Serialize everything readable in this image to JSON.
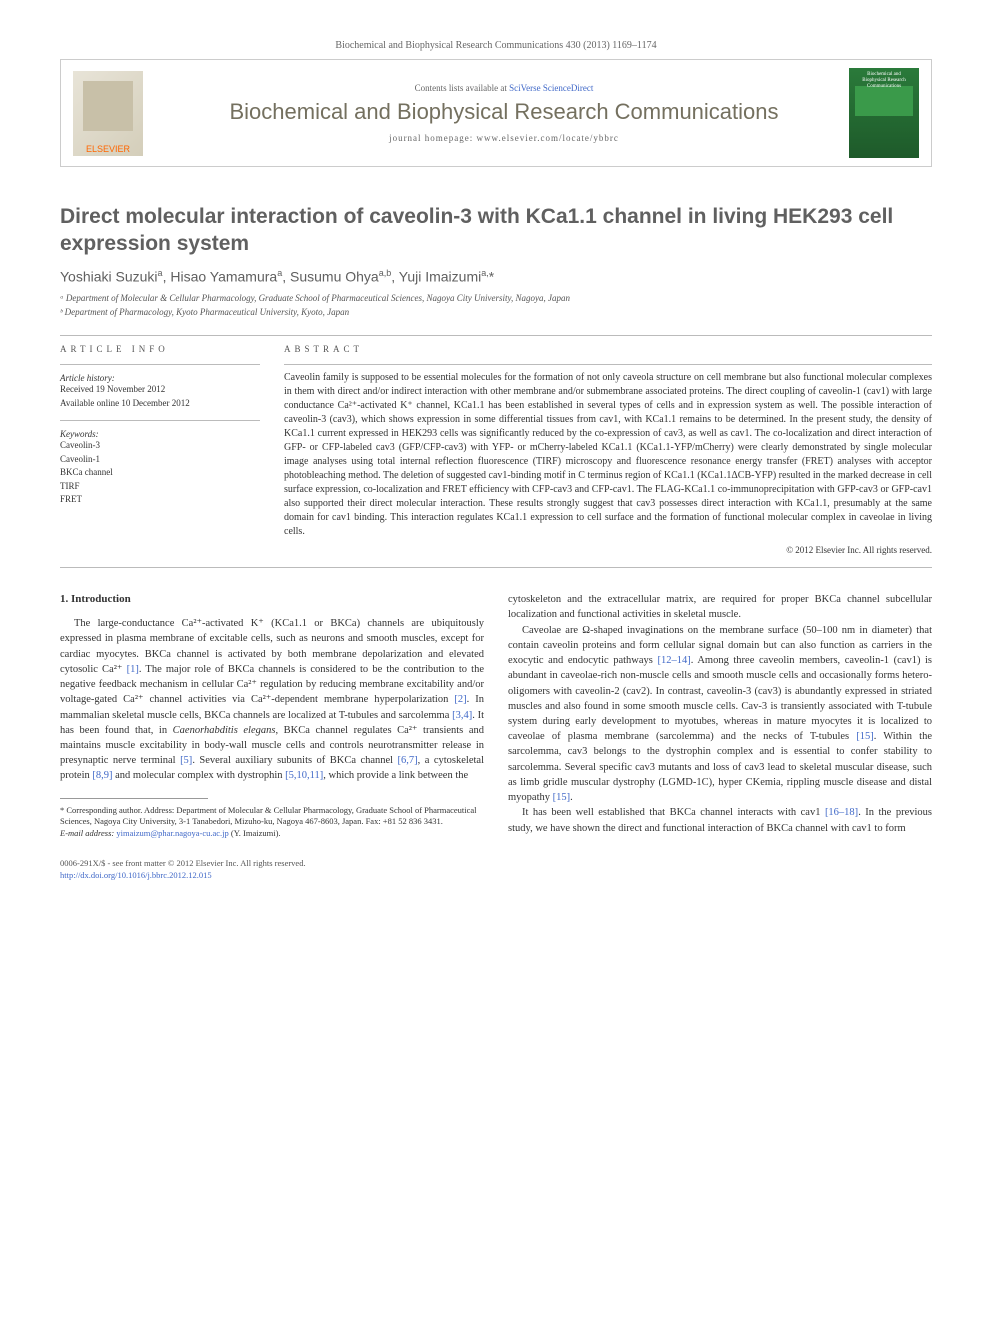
{
  "header": {
    "citation": "Biochemical and Biophysical Research Communications 430 (2013) 1169–1174",
    "contents_prefix": "Contents lists available at ",
    "contents_link": "SciVerse ScienceDirect",
    "journal_name": "Biochemical and Biophysical Research Communications",
    "homepage_prefix": "journal homepage: ",
    "homepage_url": "www.elsevier.com/locate/ybbrc",
    "publisher_label": "ELSEVIER"
  },
  "title": "Direct molecular interaction of caveolin-3 with KCa1.1 channel in living HEK293 cell expression system",
  "authors_html": "Yoshiaki Suzuki<sup>a</sup>, Hisao Yamamura<sup>a</sup>, Susumu Ohya<sup>a,b</sup>, Yuji Imaizumi<sup>a,</sup><span class='star'>*</span>",
  "affiliations": [
    "ᵃ Department of Molecular & Cellular Pharmacology, Graduate School of Pharmaceutical Sciences, Nagoya City University, Nagoya, Japan",
    "ᵇ Department of Pharmacology, Kyoto Pharmaceutical University, Kyoto, Japan"
  ],
  "article_info": {
    "heading": "ARTICLE INFO",
    "history_title": "Article history:",
    "received": "Received 19 November 2012",
    "available": "Available online 10 December 2012",
    "keywords_title": "Keywords:",
    "keywords": [
      "Caveolin-3",
      "Caveolin-1",
      "BKCa channel",
      "TIRF",
      "FRET"
    ]
  },
  "abstract": {
    "heading": "ABSTRACT",
    "text": "Caveolin family is supposed to be essential molecules for the formation of not only caveola structure on cell membrane but also functional molecular complexes in them with direct and/or indirect interaction with other membrane and/or submembrane associated proteins. The direct coupling of caveolin-1 (cav1) with large conductance Ca²⁺-activated K⁺ channel, KCa1.1 has been established in several types of cells and in expression system as well. The possible interaction of caveolin-3 (cav3), which shows expression in some differential tissues from cav1, with KCa1.1 remains to be determined. In the present study, the density of KCa1.1 current expressed in HEK293 cells was significantly reduced by the co-expression of cav3, as well as cav1. The co-localization and direct interaction of GFP- or CFP-labeled cav3 (GFP/CFP-cav3) with YFP- or mCherry-labeled KCa1.1 (KCa1.1-YFP/mCherry) were clearly demonstrated by single molecular image analyses using total internal reflection fluorescence (TIRF) microscopy and fluorescence resonance energy transfer (FRET) analyses with acceptor photobleaching method. The deletion of suggested cav1-binding motif in C terminus region of KCa1.1 (KCa1.1ΔCB-YFP) resulted in the marked decrease in cell surface expression, co-localization and FRET efficiency with CFP-cav3 and CFP-cav1. The FLAG-KCa1.1 co-immunoprecipitation with GFP-cav3 or GFP-cav1 also supported their direct molecular interaction. These results strongly suggest that cav3 possesses direct interaction with KCa1.1, presumably at the same domain for cav1 binding. This interaction regulates KCa1.1 expression to cell surface and the formation of functional molecular complex in caveolae in living cells.",
    "copyright": "© 2012 Elsevier Inc. All rights reserved."
  },
  "body": {
    "intro_heading": "1. Introduction",
    "left_col": "The large-conductance Ca²⁺-activated K⁺ (KCa1.1 or BKCa) channels are ubiquitously expressed in plasma membrane of excitable cells, such as neurons and smooth muscles, except for cardiac myocytes. BKCa channel is activated by both membrane depolarization and elevated cytosolic Ca²⁺ [1]. The major role of BKCa channels is considered to be the contribution to the negative feedback mechanism in cellular Ca²⁺ regulation by reducing membrane excitability and/or voltage-gated Ca²⁺ channel activities via Ca²⁺-dependent membrane hyperpolarization [2]. In mammalian skeletal muscle cells, BKCa channels are localized at T-tubules and sarcolemma [3,4]. It has been found that, in Caenorhabditis elegans, BKCa channel regulates Ca²⁺ transients and maintains muscle excitability in body-wall muscle cells and controls neurotransmitter release in presynaptic nerve terminal [5]. Several auxiliary subunits of BKCa channel [6,7], a cytoskeletal protein [8,9] and molecular complex with dystrophin [5,10,11], which provide a link between the",
    "right_p1": "cytoskeleton and the extracellular matrix, are required for proper BKCa channel subcellular localization and functional activities in skeletal muscle.",
    "right_p2": "Caveolae are Ω-shaped invaginations on the membrane surface (50–100 nm in diameter) that contain caveolin proteins and form cellular signal domain but can also function as carriers in the exocytic and endocytic pathways [12–14]. Among three caveolin members, caveolin-1 (cav1) is abundant in caveolae-rich non-muscle cells and smooth muscle cells and occasionally forms hetero-oligomers with caveolin-2 (cav2). In contrast, caveolin-3 (cav3) is abundantly expressed in striated muscles and also found in some smooth muscle cells. Cav-3 is transiently associated with T-tubule system during early development to myotubes, whereas in mature myocytes it is localized to caveolae of plasma membrane (sarcolemma) and the necks of T-tubules [15]. Within the sarcolemma, cav3 belongs to the dystrophin complex and is essential to confer stability to sarcolemma. Several specific cav3 mutants and loss of cav3 lead to skeletal muscular disease, such as limb gridle muscular dystrophy (LGMD-1C), hyper CKemia, rippling muscle disease and distal myopathy [15].",
    "right_p3": "It has been well established that BKCa channel interacts with cav1 [16–18]. In the previous study, we have shown the direct and functional interaction of BKCa channel with cav1 to form"
  },
  "footnote": {
    "corresponding": "* Corresponding author. Address: Department of Molecular & Cellular Pharmacology, Graduate School of Pharmaceutical Sciences, Nagoya City University, 3-1 Tanabedori, Mizuho-ku, Nagoya 467-8603, Japan. Fax: +81 52 836 3431.",
    "email_label": "E-mail address: ",
    "email": "yimaizum@phar.nagoya-cu.ac.jp",
    "email_suffix": " (Y. Imaizumi)."
  },
  "footer": {
    "line1": "0006-291X/$ - see front matter © 2012 Elsevier Inc. All rights reserved.",
    "doi": "http://dx.doi.org/10.1016/j.bbrc.2012.12.015"
  },
  "colors": {
    "link": "#4169c8",
    "heading_gray": "#606060",
    "journal_gray": "#74705f",
    "cover_green": "#2a7a3a"
  }
}
